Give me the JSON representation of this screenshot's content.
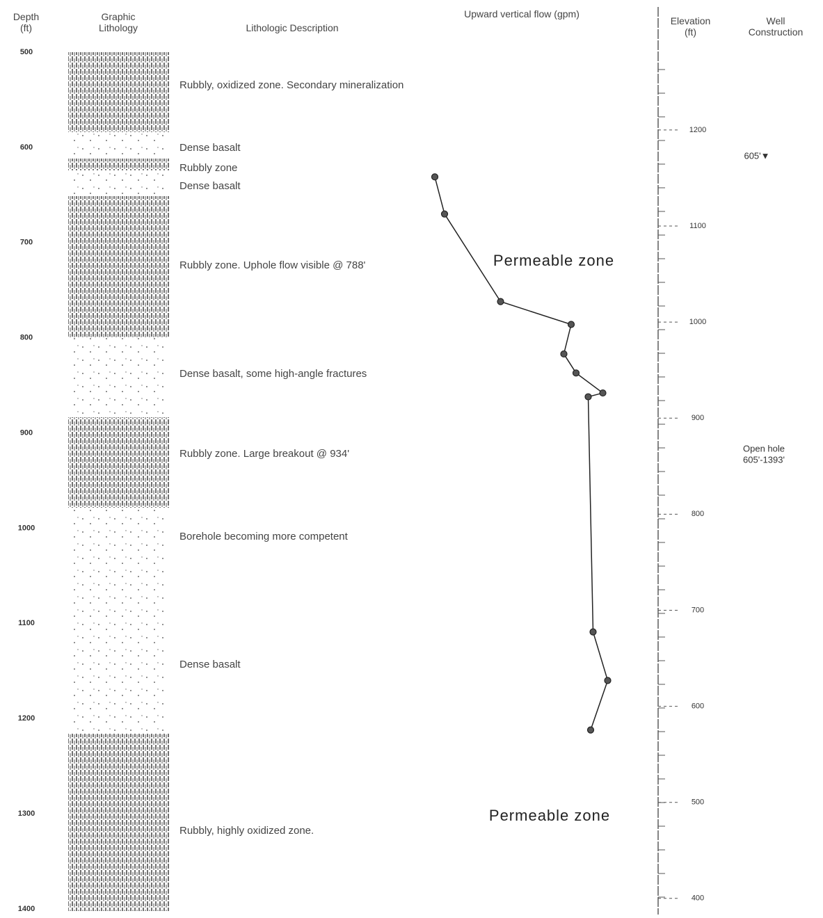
{
  "chart_data": {
    "type": "line",
    "title": "Upward vertical flow (gpm)",
    "y_label": [
      "Depth",
      "(ft)"
    ],
    "lithology_label": [
      "Graphic",
      "Lithology"
    ],
    "description_label": "Lithologic Description",
    "y2_label": [
      "Elevation",
      "(ft)"
    ],
    "construction_label": [
      "Well",
      "Construction"
    ],
    "ylim": [
      500,
      1400
    ],
    "yticks": [
      500,
      600,
      700,
      800,
      900,
      1000,
      1100,
      1200,
      1300,
      1400
    ],
    "y2lim": [
      1281,
      389
    ],
    "y2ticks": [
      1200,
      1100,
      1000,
      900,
      800,
      700,
      600,
      500,
      400
    ],
    "xlim": [
      0,
      100
    ],
    "x": [
      10,
      14,
      37,
      66,
      63,
      68,
      79,
      73,
      75,
      81,
      74
    ],
    "values": [
      631,
      670,
      762,
      786,
      817,
      837,
      858,
      862,
      1109,
      1160,
      1212
    ],
    "color": "#222222",
    "descriptions": [
      "Rubbly, oxidized zone. Secondary mineralization",
      "Dense basalt",
      "Rubbly zone",
      "Dense basalt",
      "Rubbly zone. Uphole flow visible @ 788'",
      "Dense basalt, some high-angle fractures",
      "Rubbly zone. Large breakout @ 934'",
      "Borehole becoming more competent",
      "Dense basalt",
      "Rubbly, highly oxidized zone."
    ],
    "annotations": [
      "Permeable zone",
      "Permeable zone"
    ],
    "well_construction": [
      "605'▼",
      "Open hole",
      "605'-1393'"
    ]
  }
}
